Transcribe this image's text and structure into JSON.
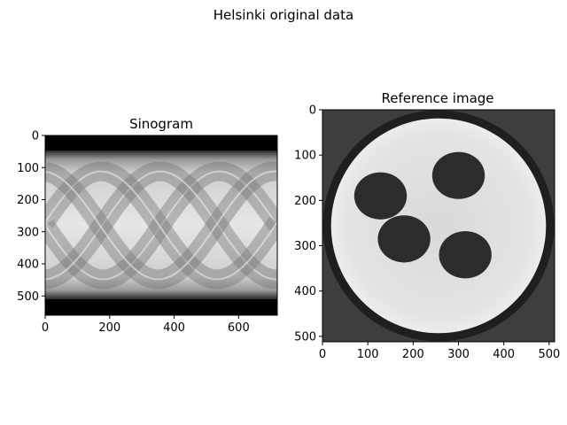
{
  "figure": {
    "suptitle": "Helsinki original data"
  },
  "chart_data": [
    {
      "type": "heatmap",
      "title": "Sinogram",
      "colormap": "gray",
      "x_ticks": [
        0,
        200,
        400,
        600
      ],
      "y_ticks": [
        0,
        100,
        200,
        300,
        400,
        500
      ],
      "x_extent": [
        0,
        720
      ],
      "y_extent": [
        0,
        560
      ],
      "origin": "upper",
      "grid": false
    },
    {
      "type": "heatmap",
      "title": "Reference image",
      "colormap": "gray",
      "x_ticks": [
        0,
        100,
        200,
        300,
        400,
        500
      ],
      "y_ticks": [
        0,
        100,
        200,
        300,
        400,
        500
      ],
      "x_extent": [
        0,
        512
      ],
      "y_extent": [
        0,
        512
      ],
      "origin": "upper",
      "grid": false,
      "disk": {
        "cx": 256,
        "cy": 256,
        "r": 237
      },
      "holes": [
        {
          "cx": 128,
          "cy": 190
        },
        {
          "cx": 300,
          "cy": 145
        },
        {
          "cx": 180,
          "cy": 285
        },
        {
          "cx": 315,
          "cy": 320
        }
      ]
    }
  ]
}
